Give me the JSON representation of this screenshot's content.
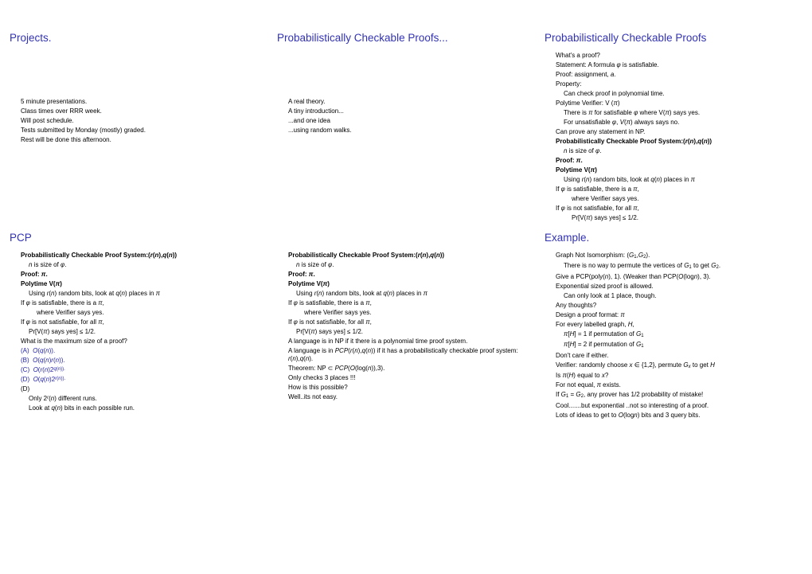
{
  "colors": {
    "heading": "#3232b4",
    "option": "#1e1ea8",
    "text": "#000000",
    "bg": "#ffffff"
  },
  "s1": {
    "title": "Projects.",
    "l1": "5 minute presentations.",
    "l2": "Class times over RRR week.",
    "l3": "Will post schedule.",
    "l4": "Tests submitted by Monday (mostly) graded.",
    "l5": "Rest will be done this afternoon."
  },
  "s2": {
    "title": "Probabilistically Checkable Proofs...",
    "l1": "A real theory.",
    "l2": "A tiny introduction...",
    "l3": "...and one idea",
    "l4": "...using random walks."
  },
  "s3": {
    "title": "Probabilistically Checkable Proofs",
    "l1": "What's a proof?",
    "l2a": "Statement: A formula ",
    "l2b": "φ",
    "l2c": " is satisfiable.",
    "l3a": "Proof: assignment, ",
    "l3b": "a",
    "l3c": ".",
    "l4": "Property:",
    "l5": "Can check proof in polynomial time.",
    "l6a": "Polytime Verifier: V (",
    "l6b": "π",
    "l6c": ")",
    "l7a": "There is ",
    "l7b": "π",
    "l7c": " for satisfiable ",
    "l7d": "φ",
    "l7e": " where V(",
    "l7f": "π",
    "l7g": ") says yes.",
    "l8a": "For unsatisfiable ",
    "l8b": "φ",
    "l8c": ", ",
    "l8d": "V",
    "l8e": "(",
    "l8f": "π",
    "l8g": ") always says no.",
    "l9": "Can prove any statement in NP.",
    "l10a": "Probabilistically Checkable Proof System:(",
    "l10b": "r",
    "l10c": "(",
    "l10d": "n",
    "l10e": "),",
    "l10f": "q",
    "l10g": "(",
    "l10h": "n",
    "l10i": "))",
    "l11a": "n",
    "l11b": " is size of ",
    "l11c": "φ",
    "l11d": ".",
    "l12a": "Proof: ",
    "l12b": "π",
    "l12c": ".",
    "l13a": "Polytime V(",
    "l13b": "π",
    "l13c": ")",
    "l14a": "Using ",
    "l14b": "r",
    "l14c": "(",
    "l14d": "n",
    "l14e": ") random bits, look at ",
    "l14f": "q",
    "l14g": "(",
    "l14h": "n",
    "l14i": ") places in ",
    "l14j": "π",
    "l15a": "If ",
    "l15b": "φ",
    "l15c": " is satisfiable, there is a ",
    "l15d": "π",
    "l15e": ",",
    "l16": "where Verifier says yes.",
    "l17a": "If ",
    "l17b": "φ",
    "l17c": " is not satisfiable, for all ",
    "l17d": "π",
    "l17e": ",",
    "l18a": "Pr[V(",
    "l18b": "π",
    "l18c": ") says yes] ≤ 1/2."
  },
  "s4": {
    "title": "PCP",
    "l1a": "Probabilistically Checkable Proof System:(",
    "l1b": "r",
    "l1c": "(",
    "l1d": "n",
    "l1e": "),",
    "l1f": "q",
    "l1g": "(",
    "l1h": "n",
    "l1i": "))",
    "l2a": "n",
    "l2b": " is size of ",
    "l2c": "φ",
    "l2d": ".",
    "l3a": "Proof: ",
    "l3b": "π",
    "l3c": ".",
    "l4a": "Polytime V(",
    "l4b": "π",
    "l4c": ")",
    "l5a": "Using ",
    "l5b": "r",
    "l5c": "(",
    "l5d": "n",
    "l5e": ") random bits, look at ",
    "l5f": "q",
    "l5g": "(",
    "l5h": "n",
    "l5i": ") places in ",
    "l5j": "π",
    "l6a": "If ",
    "l6b": "φ",
    "l6c": " is satisfiable, there is a ",
    "l6d": "π",
    "l6e": ",",
    "l7": "where Verifier says yes.",
    "l8a": "If ",
    "l8b": "φ",
    "l8c": " is not satisfiable, for all ",
    "l8d": "π",
    "l8e": ",",
    "l9a": "Pr[V(",
    "l9b": "π",
    "l9c": ") says yes] ≤ 1/2.",
    "l10": "What is the maximum size of a proof?",
    "oA": "(A)",
    "oAa": "O",
    "oAb": "(",
    "oAc": "q",
    "oAd": "(",
    "oAe": "n",
    "oAf": ")).",
    "oB": "(B)",
    "oBa": "O",
    "oBb": "(",
    "oBc": "q",
    "oBd": "(",
    "oBe": "n",
    "oBf": ")",
    "oBg": "r",
    "oBh": "(",
    "oBi": "n",
    "oBj": ")).",
    "oC": "(C)",
    "oCa": "O",
    "oCb": "(",
    "oCc": "r",
    "oCd": "(",
    "oCe": "n",
    "oCf": ")2",
    "oCg": "q",
    "oCh": "(",
    "oCi": "n",
    "oCj": ")).",
    "oD": "(D)",
    "oDa": "O",
    "oDb": "(",
    "oDc": "q",
    "oDd": "(",
    "oDe": "n",
    "oDf": ")2",
    "oDg": "r",
    "oDh": "(",
    "oDi": "n",
    "oDj": ")).",
    "l11": "(D)",
    "l12a": "Only 2",
    "l12b": "r",
    "l12c": "(",
    "l12d": "n",
    "l12e": ") different runs.",
    "l13a": "Look at ",
    "l13b": "q",
    "l13c": "(",
    "l13d": "n",
    "l13e": ") bits in each possible run."
  },
  "s5": {
    "l1a": "Probabilistically Checkable Proof System:(",
    "l1b": "r",
    "l1c": "(",
    "l1d": "n",
    "l1e": "),",
    "l1f": "q",
    "l1g": "(",
    "l1h": "n",
    "l1i": "))",
    "l2a": "n",
    "l2b": " is size of ",
    "l2c": "φ",
    "l2d": ".",
    "l3a": "Proof: ",
    "l3b": "π",
    "l3c": ".",
    "l4a": "Polytime V(",
    "l4b": "π",
    "l4c": ")",
    "l5a": "Using ",
    "l5b": "r",
    "l5c": "(",
    "l5d": "n",
    "l5e": ") random bits, look at ",
    "l5f": "q",
    "l5g": "(",
    "l5h": "n",
    "l5i": ") places in ",
    "l5j": "π",
    "l6a": "If ",
    "l6b": "φ",
    "l6c": " is satisfiable, there is a ",
    "l6d": "π",
    "l6e": ",",
    "l7": "where Verifier says yes.",
    "l8a": "If ",
    "l8b": "φ",
    "l8c": " is not satisfiable, for all ",
    "l8d": "π",
    "l8e": ",",
    "l9a": "Pr[V(",
    "l9b": "π",
    "l9c": ") says yes] ≤ 1/2.",
    "l10": "A language is in NP if it there is a polynomial time proof system.",
    "l11a": "A language is in ",
    "l11b": "PCP",
    "l11c": "(",
    "l11d": "r",
    "l11e": "(",
    "l11f": "n",
    "l11g": "),",
    "l11h": "q",
    "l11i": "(",
    "l11j": "n",
    "l11k": ")) if it has a probabilistically checkable proof system: ",
    "l11l": "r",
    "l11m": "(",
    "l11n": "n",
    "l11o": "),",
    "l11p": "q",
    "l11q": "(",
    "l11r": "n",
    "l11s": ").",
    "l12a": "Theorem: NP ⊂ ",
    "l12b": "PCP",
    "l12c": "(",
    "l12d": "O",
    "l12e": "(log(",
    "l12f": "n",
    "l12g": ")),3).",
    "l13": "Only checks 3 places !!!",
    "l14": "How is this possible?",
    "l15": "Well..its not easy."
  },
  "s6": {
    "title": "Example.",
    "l1a": "Graph Not Isomorphism: (",
    "l1b": "G",
    "l1c": "1",
    "l1d": ",",
    "l1e": "G",
    "l1f": "2",
    "l1g": ").",
    "l2a": "There is no way to permute the vertices of ",
    "l2b": "G",
    "l2c": "1",
    "l2d": " to get ",
    "l2e": "G",
    "l2f": "2",
    "l2g": ".",
    "l3a": "Give a PCP(poly(",
    "l3b": "n",
    "l3c": "), 1). (Weaker than PCP(",
    "l3d": "O",
    "l3e": "(log",
    "l3f": "n",
    "l3g": "), 3).",
    "l4": "Exponential sized proof is allowed.",
    "l5": "Can only look at 1 place, though.",
    "l6": "Any thoughts?",
    "l7a": "Design a proof format: ",
    "l7b": "π",
    "l8a": "For every labelled graph, ",
    "l8b": "H",
    "l8c": ",",
    "l9a": "π",
    "l9b": "[",
    "l9c": "H",
    "l9d": "] = 1 if permutation of ",
    "l9e": "G",
    "l9f": "1",
    "l10a": "π",
    "l10b": "[",
    "l10c": "H",
    "l10d": "] = 2 if permutation of ",
    "l10e": "G",
    "l10f": "1",
    "l11": "Don't care if either.",
    "l12a": "Verifier:   randomly choose ",
    "l12b": "x",
    "l12c": " ∈ {1,2}, permute ",
    "l12d": "G",
    "l12e": "x",
    "l12f": " to get ",
    "l12g": "H",
    "l13a": "Is ",
    "l13b": "π",
    "l13c": "(",
    "l13d": "H",
    "l13e": ") equal to ",
    "l13f": "x",
    "l13g": "?",
    "l14a": "For not equal, ",
    "l14b": "π",
    "l14c": " exists.",
    "l15a": "If ",
    "l15b": "G",
    "l15c": "1",
    "l15d": " = ",
    "l15e": "G",
    "l15f": "2",
    "l15g": ", any prover has 1/2 probability of mistake!",
    "l16": "Cool.......but exponential ..not so interesting of a proof.",
    "l17a": "Lots of ideas to get to ",
    "l17b": "O",
    "l17c": "(log",
    "l17d": "n",
    "l17e": ") bits and 3 query bits."
  }
}
